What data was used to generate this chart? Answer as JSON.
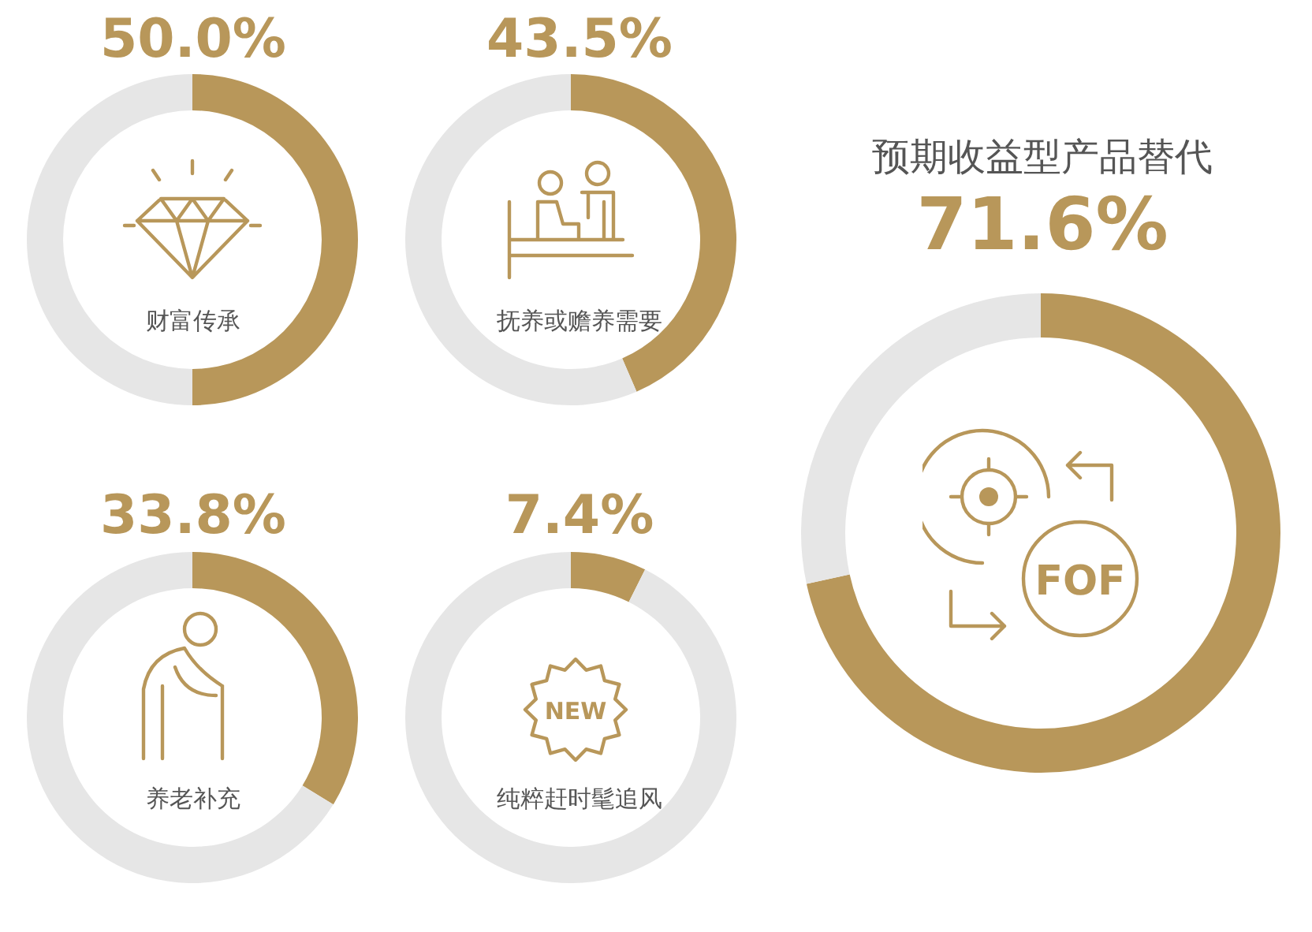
{
  "chart_data": [
    {
      "type": "donut",
      "title": "财富传承",
      "categories": [
        null,
        null
      ],
      "values": [
        50.0,
        50.0
      ],
      "colors": [
        "#b8975a",
        "#e6e6e6"
      ],
      "value_labels": [
        "50.0%",
        null
      ]
    },
    {
      "type": "donut",
      "title": "抚养或赡养需要",
      "categories": [
        null,
        null
      ],
      "values": [
        43.5,
        56.5
      ],
      "colors": [
        "#b8975a",
        "#e6e6e6"
      ],
      "value_labels": [
        "43.5%",
        null
      ]
    },
    {
      "type": "donut",
      "title": "养老补充",
      "categories": [
        null,
        null
      ],
      "values": [
        33.8,
        66.2
      ],
      "colors": [
        "#b8975a",
        "#e6e6e6"
      ],
      "value_labels": [
        "33.8%",
        null
      ]
    },
    {
      "type": "donut",
      "title": "纯粹赶时髦追风",
      "categories": [
        null,
        null
      ],
      "values": [
        7.4,
        92.6
      ],
      "colors": [
        "#b8975a",
        "#e6e6e6"
      ],
      "value_labels": [
        "7.4%",
        null
      ],
      "annotations": [
        "NEW"
      ]
    },
    {
      "type": "donut",
      "title": "预期收益型产品替代",
      "categories": [
        null,
        null
      ],
      "values": [
        71.6,
        28.4
      ],
      "colors": [
        "#b8975a",
        "#e6e6e6"
      ],
      "value_labels": [
        "71.6%",
        null
      ],
      "annotations": [
        "FOF"
      ]
    }
  ]
}
